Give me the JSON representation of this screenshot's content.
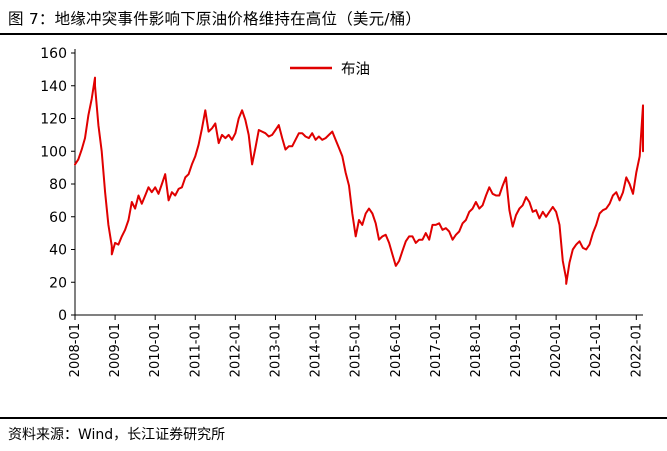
{
  "title": "图 7：地缘冲突事件影响下原油价格维持在高位（美元/桶）",
  "source": "资料来源：Wind，长江证券研究所",
  "chart_data": {
    "type": "line",
    "title": "图 7：地缘冲突事件影响下原油价格维持在高位（美元/桶）",
    "xlabel": "",
    "ylabel": "",
    "x_ticks": [
      "2008-01",
      "2009-01",
      "2010-01",
      "2011-01",
      "2012-01",
      "2013-01",
      "2014-01",
      "2015-01",
      "2016-01",
      "2017-01",
      "2018-01",
      "2019-01",
      "2020-01",
      "2021-01",
      "2022-01"
    ],
    "y_ticks": [
      0,
      20,
      40,
      60,
      80,
      100,
      120,
      140,
      160
    ],
    "ylim": [
      0,
      160
    ],
    "xlim": [
      "2008-01",
      "2022-03"
    ],
    "grid": false,
    "legend": "top-center",
    "series": [
      {
        "name": "布油",
        "color": "#e00000",
        "points": [
          [
            "2008-01",
            92
          ],
          [
            "2008-02",
            95
          ],
          [
            "2008-03",
            101
          ],
          [
            "2008-04",
            108
          ],
          [
            "2008-05",
            122
          ],
          [
            "2008-06",
            132
          ],
          [
            "2008-07",
            145
          ],
          [
            "2008-07",
            140
          ],
          [
            "2008-08",
            116
          ],
          [
            "2008-09",
            100
          ],
          [
            "2008-10",
            75
          ],
          [
            "2008-11",
            55
          ],
          [
            "2008-12",
            42
          ],
          [
            "2008-12",
            37
          ],
          [
            "2009-01",
            44
          ],
          [
            "2009-02",
            43
          ],
          [
            "2009-03",
            48
          ],
          [
            "2009-04",
            52
          ],
          [
            "2009-05",
            58
          ],
          [
            "2009-06",
            69
          ],
          [
            "2009-07",
            65
          ],
          [
            "2009-08",
            73
          ],
          [
            "2009-09",
            68
          ],
          [
            "2009-10",
            73
          ],
          [
            "2009-11",
            78
          ],
          [
            "2009-12",
            75
          ],
          [
            "2010-01",
            78
          ],
          [
            "2010-02",
            74
          ],
          [
            "2010-03",
            80
          ],
          [
            "2010-04",
            86
          ],
          [
            "2010-05",
            70
          ],
          [
            "2010-06",
            75
          ],
          [
            "2010-07",
            73
          ],
          [
            "2010-08",
            77
          ],
          [
            "2010-09",
            78
          ],
          [
            "2010-10",
            84
          ],
          [
            "2010-11",
            86
          ],
          [
            "2010-12",
            92
          ],
          [
            "2011-01",
            97
          ],
          [
            "2011-02",
            104
          ],
          [
            "2011-03",
            114
          ],
          [
            "2011-04",
            125
          ],
          [
            "2011-05",
            112
          ],
          [
            "2011-06",
            114
          ],
          [
            "2011-07",
            117
          ],
          [
            "2011-08",
            105
          ],
          [
            "2011-09",
            110
          ],
          [
            "2011-10",
            108
          ],
          [
            "2011-11",
            110
          ],
          [
            "2011-12",
            107
          ],
          [
            "2012-01",
            111
          ],
          [
            "2012-02",
            120
          ],
          [
            "2012-03",
            125
          ],
          [
            "2012-04",
            119
          ],
          [
            "2012-05",
            110
          ],
          [
            "2012-06",
            92
          ],
          [
            "2012-07",
            102
          ],
          [
            "2012-08",
            113
          ],
          [
            "2012-09",
            112
          ],
          [
            "2012-10",
            111
          ],
          [
            "2012-11",
            109
          ],
          [
            "2012-12",
            110
          ],
          [
            "2013-01",
            113
          ],
          [
            "2013-02",
            116
          ],
          [
            "2013-03",
            108
          ],
          [
            "2013-04",
            101
          ],
          [
            "2013-05",
            103
          ],
          [
            "2013-06",
            103
          ],
          [
            "2013-07",
            107
          ],
          [
            "2013-08",
            111
          ],
          [
            "2013-09",
            111
          ],
          [
            "2013-10",
            109
          ],
          [
            "2013-11",
            108
          ],
          [
            "2013-12",
            111
          ],
          [
            "2014-01",
            107
          ],
          [
            "2014-02",
            109
          ],
          [
            "2014-03",
            107
          ],
          [
            "2014-04",
            108
          ],
          [
            "2014-05",
            110
          ],
          [
            "2014-06",
            112
          ],
          [
            "2014-07",
            107
          ],
          [
            "2014-08",
            102
          ],
          [
            "2014-09",
            97
          ],
          [
            "2014-10",
            87
          ],
          [
            "2014-11",
            79
          ],
          [
            "2014-12",
            62
          ],
          [
            "2015-01",
            48
          ],
          [
            "2015-02",
            58
          ],
          [
            "2015-03",
            55
          ],
          [
            "2015-04",
            62
          ],
          [
            "2015-05",
            65
          ],
          [
            "2015-06",
            62
          ],
          [
            "2015-07",
            56
          ],
          [
            "2015-08",
            46
          ],
          [
            "2015-09",
            48
          ],
          [
            "2015-10",
            49
          ],
          [
            "2015-11",
            44
          ],
          [
            "2015-12",
            37
          ],
          [
            "2016-01",
            30
          ],
          [
            "2016-02",
            33
          ],
          [
            "2016-03",
            39
          ],
          [
            "2016-04",
            45
          ],
          [
            "2016-05",
            48
          ],
          [
            "2016-06",
            48
          ],
          [
            "2016-07",
            44
          ],
          [
            "2016-08",
            46
          ],
          [
            "2016-09",
            46
          ],
          [
            "2016-10",
            50
          ],
          [
            "2016-11",
            46
          ],
          [
            "2016-12",
            55
          ],
          [
            "2017-01",
            55
          ],
          [
            "2017-02",
            56
          ],
          [
            "2017-03",
            52
          ],
          [
            "2017-04",
            53
          ],
          [
            "2017-05",
            51
          ],
          [
            "2017-06",
            46
          ],
          [
            "2017-07",
            49
          ],
          [
            "2017-08",
            51
          ],
          [
            "2017-09",
            56
          ],
          [
            "2017-10",
            58
          ],
          [
            "2017-11",
            63
          ],
          [
            "2017-12",
            65
          ],
          [
            "2018-01",
            69
          ],
          [
            "2018-02",
            65
          ],
          [
            "2018-03",
            67
          ],
          [
            "2018-04",
            73
          ],
          [
            "2018-05",
            78
          ],
          [
            "2018-06",
            74
          ],
          [
            "2018-07",
            73
          ],
          [
            "2018-08",
            73
          ],
          [
            "2018-09",
            79
          ],
          [
            "2018-10",
            84
          ],
          [
            "2018-11",
            64
          ],
          [
            "2018-12",
            54
          ],
          [
            "2019-01",
            61
          ],
          [
            "2019-02",
            65
          ],
          [
            "2019-03",
            67
          ],
          [
            "2019-04",
            72
          ],
          [
            "2019-05",
            69
          ],
          [
            "2019-06",
            63
          ],
          [
            "2019-07",
            64
          ],
          [
            "2019-08",
            59
          ],
          [
            "2019-09",
            63
          ],
          [
            "2019-10",
            60
          ],
          [
            "2019-11",
            63
          ],
          [
            "2019-12",
            66
          ],
          [
            "2020-01",
            63
          ],
          [
            "2020-02",
            55
          ],
          [
            "2020-03",
            33
          ],
          [
            "2020-04",
            22
          ],
          [
            "2020-04",
            19
          ],
          [
            "2020-05",
            32
          ],
          [
            "2020-06",
            40
          ],
          [
            "2020-07",
            43
          ],
          [
            "2020-08",
            45
          ],
          [
            "2020-09",
            41
          ],
          [
            "2020-10",
            40
          ],
          [
            "2020-11",
            43
          ],
          [
            "2020-12",
            50
          ],
          [
            "2021-01",
            55
          ],
          [
            "2021-02",
            62
          ],
          [
            "2021-03",
            64
          ],
          [
            "2021-04",
            65
          ],
          [
            "2021-05",
            68
          ],
          [
            "2021-06",
            73
          ],
          [
            "2021-07",
            75
          ],
          [
            "2021-08",
            70
          ],
          [
            "2021-09",
            75
          ],
          [
            "2021-10",
            84
          ],
          [
            "2021-11",
            80
          ],
          [
            "2021-12",
            74
          ],
          [
            "2022-01",
            87
          ],
          [
            "2022-02",
            97
          ],
          [
            "2022-03",
            128
          ],
          [
            "2022-03",
            100
          ]
        ]
      }
    ]
  }
}
